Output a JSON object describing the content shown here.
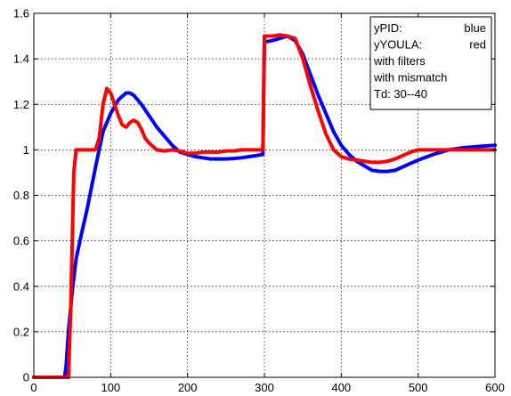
{
  "chart_data": {
    "type": "line",
    "title": "",
    "xlabel": "",
    "ylabel": "",
    "xlim": [
      0,
      600
    ],
    "ylim": [
      0,
      1.6
    ],
    "grid": true,
    "x_ticks": [
      0,
      100,
      200,
      300,
      400,
      500,
      600
    ],
    "y_ticks": [
      0,
      0.2,
      0.4,
      0.6,
      0.8,
      1,
      1.2,
      1.4,
      1.6
    ],
    "x_tick_labels": [
      "0",
      "100",
      "200",
      "300",
      "400",
      "500",
      "600"
    ],
    "y_tick_labels": [
      "0",
      "0.2",
      "0.4",
      "0.6",
      "0.8",
      "1",
      "1.2",
      "1.4",
      "1.6"
    ],
    "legend_position": "top-right",
    "legend_lines": [
      {
        "left": "yPID:",
        "right": "blue"
      },
      {
        "left": "yYOULA:",
        "right": "red"
      },
      {
        "left": "with filters",
        "right": ""
      },
      {
        "left": "with mismatch",
        "right": ""
      },
      {
        "left": "Td: 30--40",
        "right": ""
      }
    ],
    "series": [
      {
        "color": "#0000ff",
        "x": [
          0,
          40,
          42,
          45,
          50,
          55,
          60,
          70,
          80,
          90,
          100,
          110,
          120,
          125,
          130,
          140,
          150,
          160,
          170,
          180,
          190,
          200,
          210,
          220,
          230,
          240,
          250,
          260,
          270,
          280,
          290,
          298,
          300,
          302,
          310,
          320,
          330,
          340,
          350,
          360,
          370,
          380,
          390,
          400,
          410,
          420,
          430,
          440,
          450,
          460,
          470,
          480,
          490,
          500,
          520,
          540,
          560,
          580,
          600
        ],
        "y": [
          0,
          0,
          0.05,
          0.2,
          0.38,
          0.52,
          0.6,
          0.75,
          0.92,
          1.08,
          1.16,
          1.22,
          1.25,
          1.25,
          1.24,
          1.2,
          1.15,
          1.1,
          1.06,
          1.02,
          0.99,
          0.98,
          0.97,
          0.965,
          0.96,
          0.96,
          0.96,
          0.962,
          0.965,
          0.97,
          0.975,
          0.98,
          1.47,
          1.475,
          1.48,
          1.49,
          1.5,
          1.48,
          1.42,
          1.33,
          1.24,
          1.16,
          1.08,
          1.02,
          0.98,
          0.95,
          0.93,
          0.91,
          0.905,
          0.905,
          0.91,
          0.925,
          0.94,
          0.955,
          0.98,
          1.0,
          1.01,
          1.015,
          1.02
        ]
      },
      {
        "color": "#ff0000",
        "x": [
          0,
          40,
          45,
          48,
          50,
          52,
          55,
          60,
          70,
          80,
          85,
          90,
          95,
          100,
          105,
          110,
          115,
          120,
          125,
          130,
          135,
          140,
          145,
          150,
          160,
          170,
          180,
          190,
          200,
          210,
          220,
          230,
          240,
          250,
          260,
          270,
          280,
          290,
          298,
          300,
          310,
          320,
          330,
          340,
          350,
          360,
          370,
          380,
          390,
          400,
          410,
          420,
          430,
          440,
          450,
          460,
          470,
          480,
          490,
          500,
          520,
          540,
          560,
          580,
          600
        ],
        "y": [
          0,
          0,
          0,
          0.3,
          0.6,
          0.9,
          1.0,
          1.0,
          1.0,
          1.0,
          1.05,
          1.2,
          1.27,
          1.25,
          1.2,
          1.15,
          1.11,
          1.1,
          1.12,
          1.13,
          1.12,
          1.09,
          1.05,
          1.03,
          1.0,
          0.995,
          1.0,
          0.995,
          0.985,
          0.985,
          0.99,
          0.99,
          0.99,
          0.995,
          0.995,
          1.0,
          1.0,
          1.0,
          1.0,
          1.5,
          1.5,
          1.505,
          1.5,
          1.49,
          1.4,
          1.28,
          1.17,
          1.07,
          1.0,
          0.97,
          0.96,
          0.955,
          0.95,
          0.945,
          0.945,
          0.95,
          0.96,
          0.975,
          0.99,
          1.0,
          1.0,
          1.0,
          1.0,
          1.0,
          1.0
        ]
      }
    ]
  }
}
